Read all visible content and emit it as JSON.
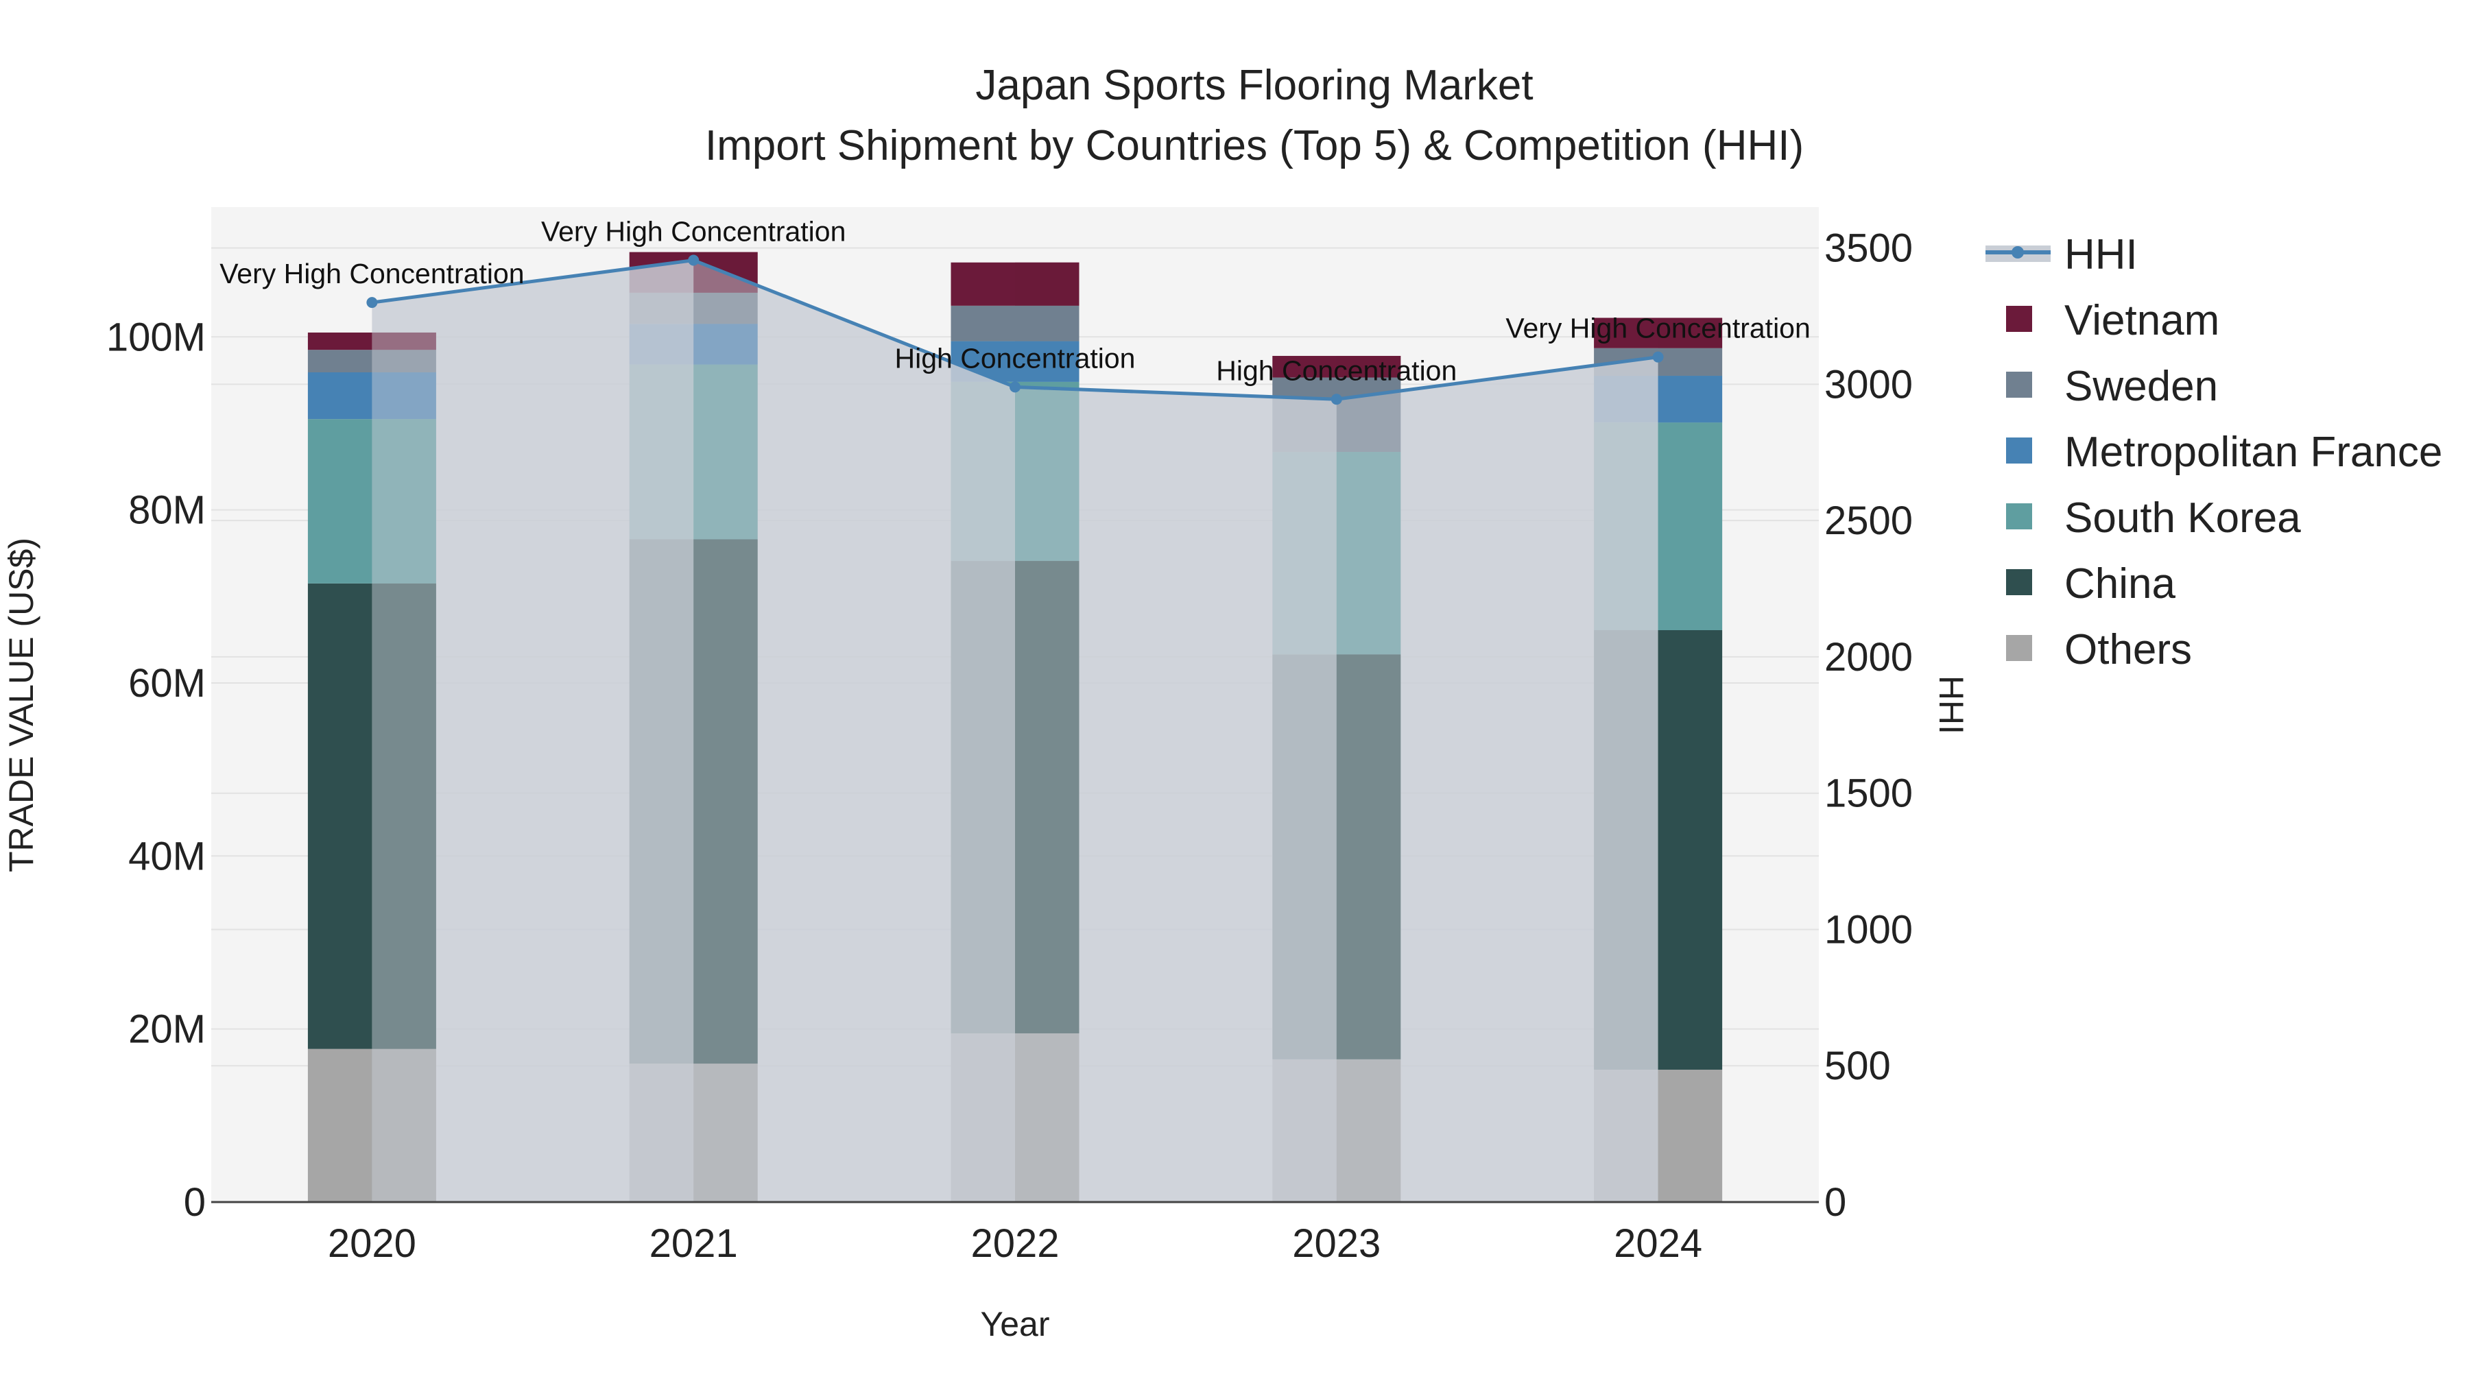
{
  "chart_data": {
    "type": "bar",
    "title_line1": "Japan Sports Flooring Market",
    "title_line2": "Import Shipment by Countries (Top 5) & Competition (HHI)",
    "xlabel": "Year",
    "ylabel": "TRADE VALUE (US$)",
    "y2label": "HHI",
    "categories": [
      "2020",
      "2021",
      "2022",
      "2023",
      "2024"
    ],
    "ylim": [
      0,
      115000000
    ],
    "y_ticks": [
      0,
      20000000,
      40000000,
      60000000,
      80000000,
      100000000
    ],
    "y_tick_labels": [
      "0",
      "20M",
      "40M",
      "60M",
      "80M",
      "100M"
    ],
    "y2lim": [
      0,
      3650
    ],
    "y2_ticks": [
      0,
      500,
      1000,
      1500,
      2000,
      2500,
      3000,
      3500
    ],
    "y2_tick_labels": [
      "0",
      "500",
      "1000",
      "1500",
      "2000",
      "2500",
      "3000",
      "3500"
    ],
    "series": [
      {
        "name": "Others",
        "color": "#a6a6a6",
        "values": [
          17700000,
          16000000,
          19500000,
          16500000,
          15300000
        ]
      },
      {
        "name": "China",
        "color": "#2f4f4f",
        "values": [
          53800000,
          60600000,
          54600000,
          46800000,
          50800000
        ]
      },
      {
        "name": "South Korea",
        "color": "#5f9ea0",
        "values": [
          19000000,
          20200000,
          20700000,
          23400000,
          24000000
        ]
      },
      {
        "name": "Metropolitan France",
        "color": "#4682b4",
        "values": [
          5400000,
          4700000,
          4700000,
          0,
          5400000
        ]
      },
      {
        "name": "Sweden",
        "color": "#708090",
        "values": [
          2600000,
          3600000,
          4100000,
          8600000,
          3200000
        ]
      },
      {
        "name": "Vietnam",
        "color": "#6b1a3a",
        "values": [
          2000000,
          4700000,
          5000000,
          2500000,
          3500000
        ]
      }
    ],
    "hhi": {
      "name": "HHI",
      "color": "#4682b4",
      "fill_color": "#c9ced6",
      "values": [
        3300,
        3455,
        2990,
        2945,
        3100
      ],
      "annotations": [
        "Very High Concentration",
        "Very High Concentration",
        "High Concentration",
        "High Concentration",
        "Very High Concentration"
      ]
    },
    "legend_order": [
      "HHI",
      "Vietnam",
      "Sweden",
      "Metropolitan France",
      "South Korea",
      "China",
      "Others"
    ],
    "legend_position": "right"
  }
}
